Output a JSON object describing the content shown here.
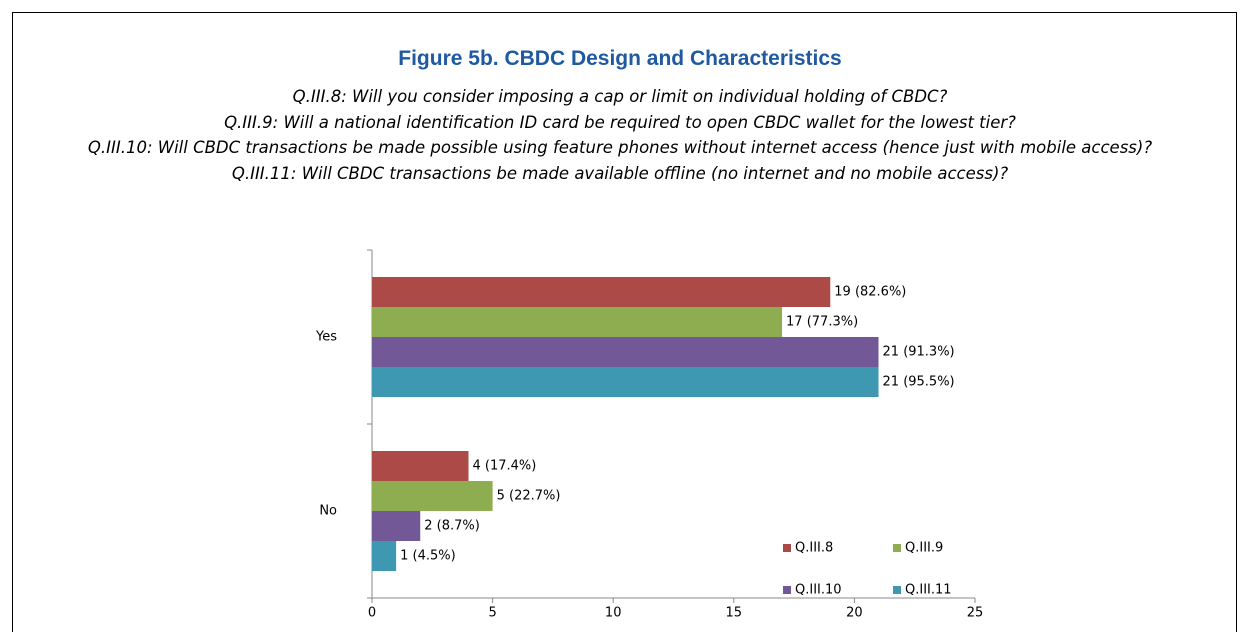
{
  "chart_data": {
    "type": "barh",
    "title": "Figure 5b. CBDC Design and Characteristics",
    "subtitle": [
      "Q.III.8: Will you consider imposing a cap or limit on individual holding of CBDC?",
      "Q.III.9: Will a national identification ID card be required to open CBDC wallet for the lowest tier?",
      "Q.III.10: Will CBDC transactions be made possible using feature phones without internet access (hence just with mobile access)?",
      "Q.III.11: Will CBDC transactions be made available offline (no internet and no mobile access)?"
    ],
    "categories": [
      "Yes",
      "No"
    ],
    "series": [
      {
        "name": "Q.III.8",
        "color": "#ab4a46",
        "values": [
          19,
          4
        ],
        "value_labels": [
          "19 (82.6%)",
          "4 (17.4%)"
        ]
      },
      {
        "name": "Q.III.9",
        "color": "#8ead50",
        "values": [
          17,
          5
        ],
        "value_labels": [
          "17 (77.3%)",
          "5 (22.7%)"
        ]
      },
      {
        "name": "Q.III.10",
        "color": "#725896",
        "values": [
          21,
          2
        ],
        "value_labels": [
          "21 (91.3%)",
          "2 (8.7%)"
        ]
      },
      {
        "name": "Q.III.11",
        "color": "#3f98b2",
        "values": [
          21,
          1
        ],
        "value_labels": [
          "21 (95.5%)",
          "1 (4.5%)"
        ]
      }
    ],
    "xlim": [
      0,
      25
    ],
    "xticks": [
      0,
      5,
      10,
      15,
      20,
      25
    ]
  }
}
